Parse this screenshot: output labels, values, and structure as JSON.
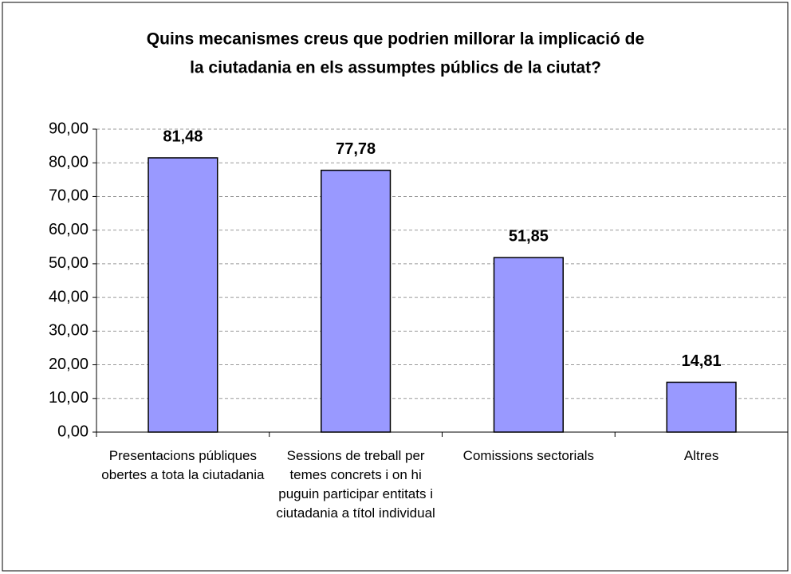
{
  "chart_data": {
    "type": "bar",
    "title": [
      "Quins mecanismes creus que podrien millorar la implicació de",
      "la ciutadania en els assumptes públics de la ciutat?"
    ],
    "categories": [
      "Presentacions públiques obertes a tota la ciutadania",
      "Sessions de treball per temes concrets i on hi puguin participar entitats i ciutadania a títol individual",
      "Comissions sectorials",
      "Altres"
    ],
    "values": [
      81.48,
      77.78,
      51.85,
      14.81
    ],
    "value_labels": [
      "81,48",
      "77,78",
      "51,85",
      "14,81"
    ],
    "color": "#9999ff",
    "ylim": [
      0,
      90
    ],
    "yticks": [
      {
        "value": 0,
        "label": "0,00"
      },
      {
        "value": 10,
        "label": "10,00"
      },
      {
        "value": 20,
        "label": "20,00"
      },
      {
        "value": 30,
        "label": "30,00"
      },
      {
        "value": 40,
        "label": "40,00"
      },
      {
        "value": 50,
        "label": "50,00"
      },
      {
        "value": 60,
        "label": "60,00"
      },
      {
        "value": 70,
        "label": "70,00"
      },
      {
        "value": 80,
        "label": "80,00"
      },
      {
        "value": 90,
        "label": "90,00"
      }
    ],
    "grid": true
  }
}
